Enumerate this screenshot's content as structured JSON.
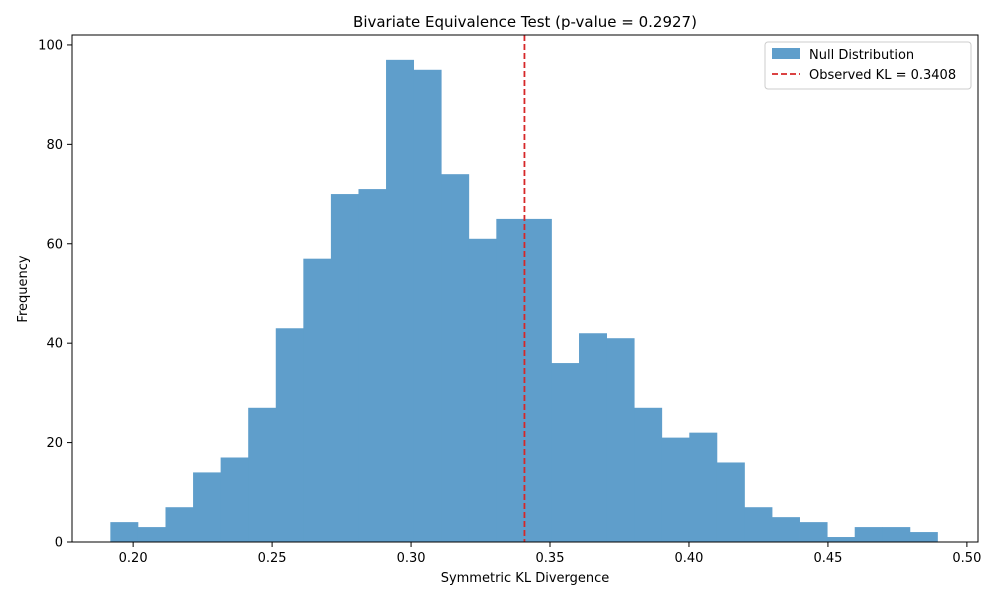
{
  "chart_data": {
    "type": "bar",
    "title": "Bivariate Equivalence Test (p-value = 0.2927)",
    "xlabel": "Symmetric KL Divergence",
    "ylabel": "Frequency",
    "xlim": [
      0.178,
      0.504
    ],
    "ylim": [
      0,
      102
    ],
    "x_ticks": [
      0.2,
      0.25,
      0.3,
      0.35,
      0.4,
      0.45,
      0.5
    ],
    "x_tick_labels": [
      "0.20",
      "0.25",
      "0.30",
      "0.35",
      "0.40",
      "0.45",
      "0.50"
    ],
    "y_ticks": [
      0,
      20,
      40,
      60,
      80,
      100
    ],
    "y_tick_labels": [
      "0",
      "20",
      "40",
      "60",
      "80",
      "100"
    ],
    "grid": false,
    "legend_position": "top-right",
    "series": [
      {
        "name": "Null Distribution",
        "color": "#5f9ecb",
        "bins_start": 0.1918,
        "bin_width": 0.00992,
        "values": [
          4,
          3,
          7,
          14,
          17,
          27,
          43,
          57,
          70,
          71,
          97,
          95,
          74,
          61,
          65,
          65,
          36,
          42,
          41,
          27,
          21,
          22,
          16,
          7,
          5,
          4,
          1,
          3,
          3,
          2
        ]
      }
    ],
    "reference_line": {
      "label": "Observed KL = 0.3408",
      "x": 0.3408,
      "color": "#d62728",
      "style": "dashed"
    }
  }
}
